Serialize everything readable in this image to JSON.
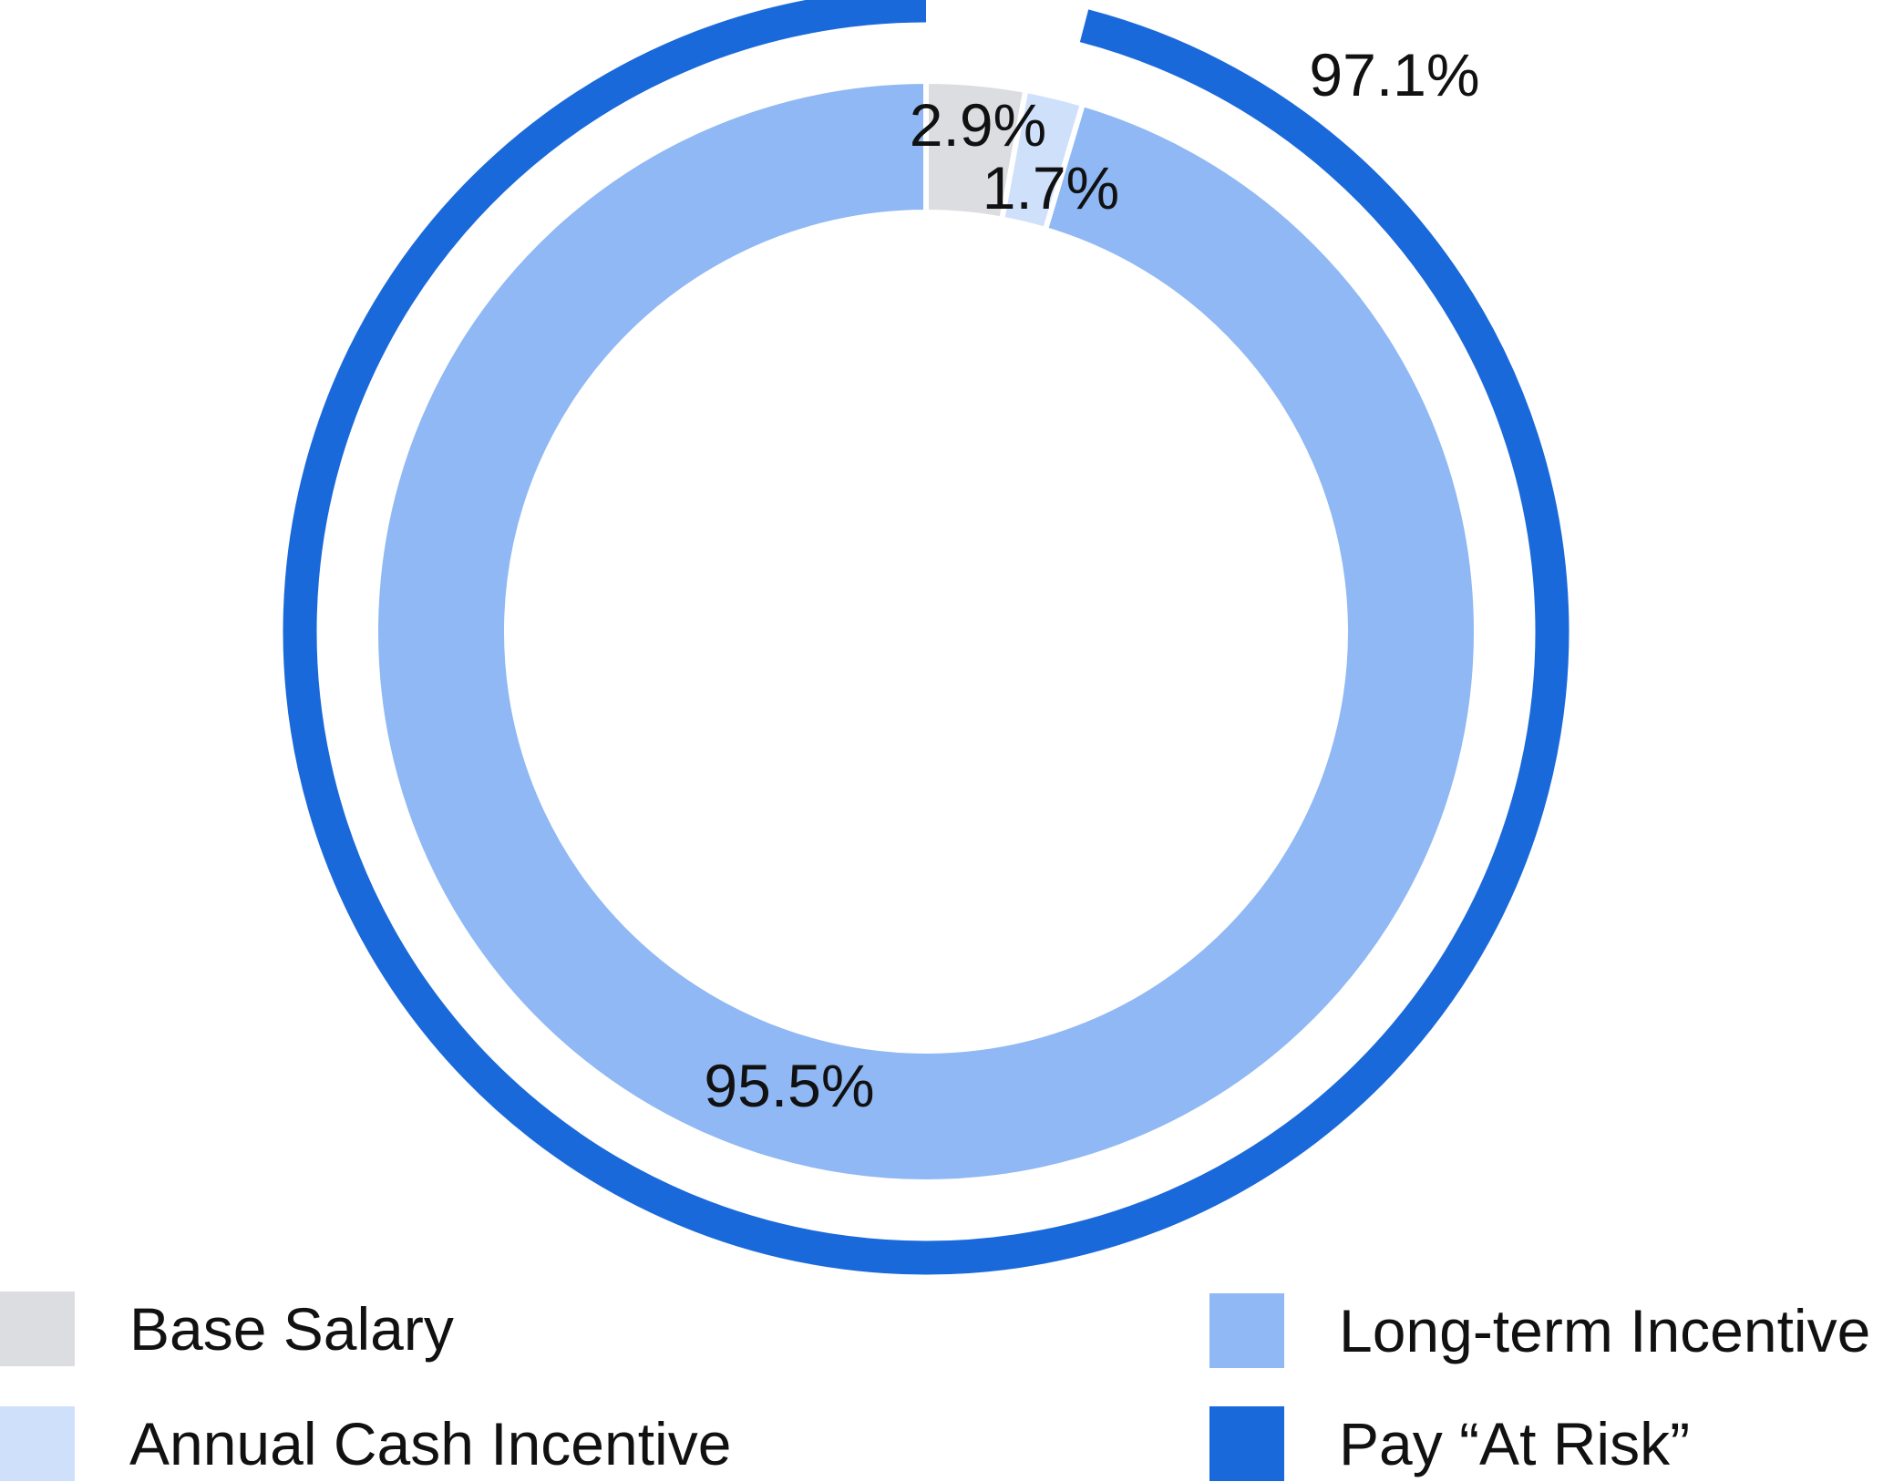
{
  "chart_data": {
    "type": "pie",
    "style": "donut",
    "inner_ring": {
      "slices": [
        {
          "name": "Base Salary",
          "value": 2.9,
          "label": "2.9%",
          "color": "#dcdde1"
        },
        {
          "name": "Annual Cash Incentive",
          "value": 1.7,
          "label": "1.7%",
          "color": "#cfe0fb"
        },
        {
          "name": "Long-term Incentive",
          "value": 95.5,
          "label": "95.5%",
          "color": "#8fb8f4"
        }
      ]
    },
    "outer_ring": {
      "name": "Pay “At Risk”",
      "value": 97.1,
      "label": "97.1%",
      "color": "#1a69db"
    },
    "legend": {
      "placement": "bottom",
      "items": [
        {
          "label": "Base Salary",
          "color": "#dcdde1"
        },
        {
          "label": "Annual Cash Incentive",
          "color": "#cfe0fb"
        },
        {
          "label": "Long-term Incentive",
          "color": "#8fb8f4"
        },
        {
          "label": "Pay “At Risk”",
          "color": "#1a69db"
        }
      ]
    }
  }
}
